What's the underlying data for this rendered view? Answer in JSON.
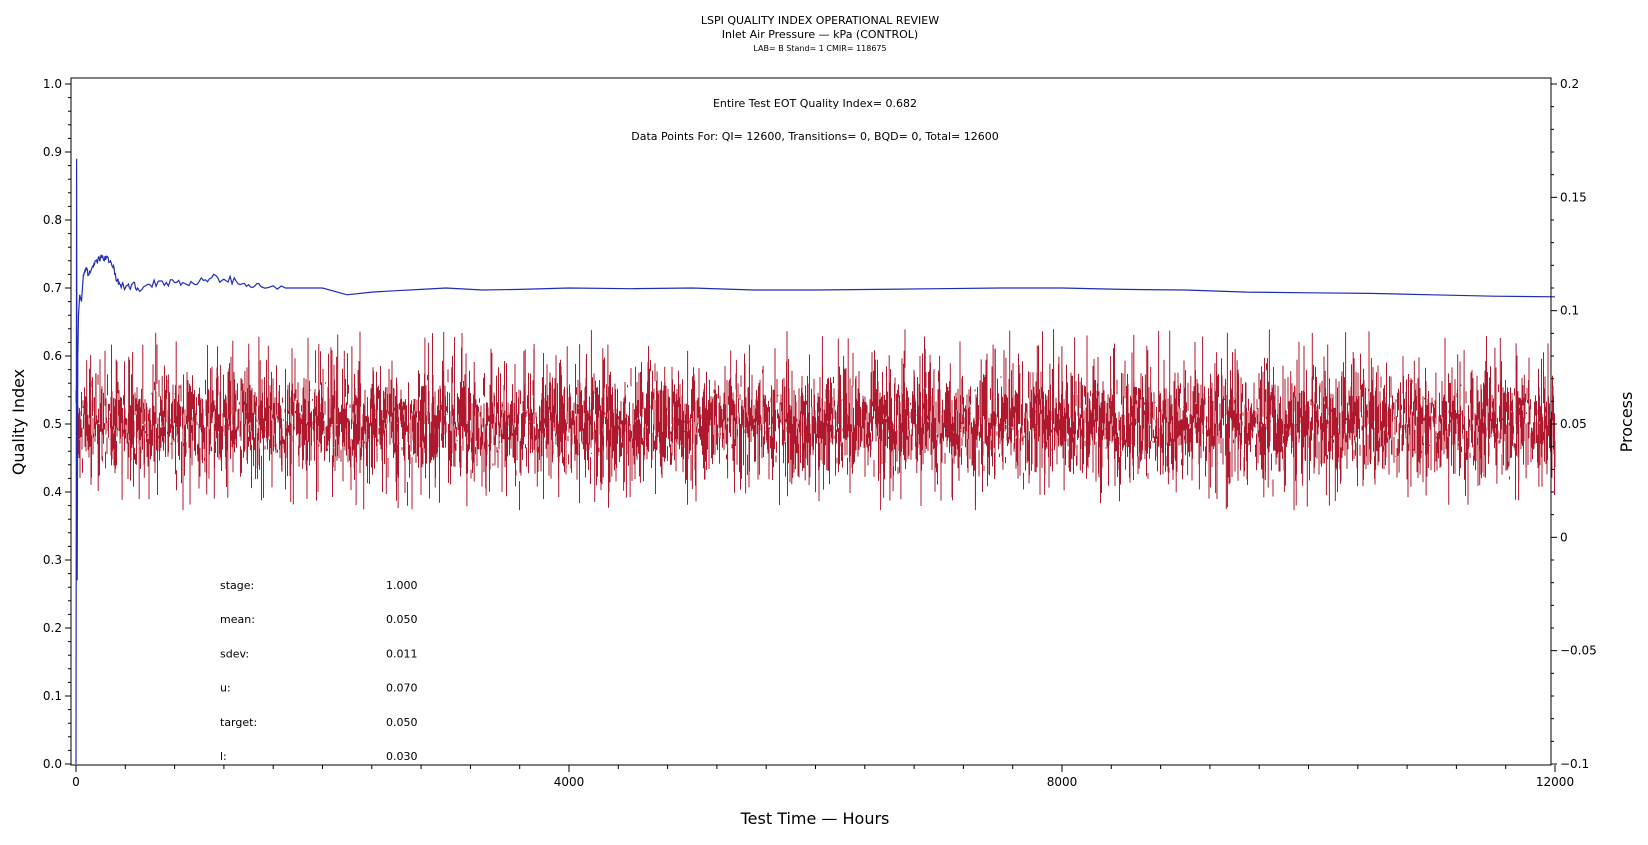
{
  "header": {
    "line1": "LSPI QUALITY INDEX OPERATIONAL REVIEW",
    "line2": "Inlet Air Pressure — kPa (CONTROL)",
    "line3": "LAB= B Stand= 1 CMIR= 118675"
  },
  "annotations": {
    "eot": "Entire Test EOT Quality Index=   0.682",
    "points": "Data Points For: QI= 12600, Transitions=     0, BQD=     0, Total= 12600"
  },
  "stats": [
    {
      "label": "stage:",
      "value": "1.000"
    },
    {
      "label": "mean:",
      "value": "0.050"
    },
    {
      "label": "sdev:",
      "value": "0.011"
    },
    {
      "label": "u:",
      "value": "0.070"
    },
    {
      "label": "target:",
      "value": "0.050"
    },
    {
      "label": "l:",
      "value": "0.030"
    }
  ],
  "chart_data": {
    "type": "line",
    "xlabel": "Test Time — Hours",
    "ylabel": "Quality Index",
    "y2label": "Process",
    "xlim": [
      0,
      12000
    ],
    "ylim": [
      0,
      1.0
    ],
    "y2lim": [
      -0.1,
      0.2
    ],
    "xticks": [
      {
        "value": 0,
        "label": "0"
      },
      {
        "value": 4000,
        "label": "4000"
      },
      {
        "value": 8000,
        "label": "8000"
      },
      {
        "value": 12000,
        "label": "12000"
      }
    ],
    "yticks": [
      {
        "value": 0.0,
        "label": "0.0"
      },
      {
        "value": 0.1,
        "label": "0.1"
      },
      {
        "value": 0.2,
        "label": "0.2"
      },
      {
        "value": 0.3,
        "label": "0.3"
      },
      {
        "value": 0.4,
        "label": "0.4"
      },
      {
        "value": 0.5,
        "label": "0.5"
      },
      {
        "value": 0.6,
        "label": "0.6"
      },
      {
        "value": 0.7,
        "label": "0.7"
      },
      {
        "value": 0.8,
        "label": "0.8"
      },
      {
        "value": 0.9,
        "label": "0.9"
      },
      {
        "value": 1.0,
        "label": "1.0"
      }
    ],
    "y2ticks": [
      {
        "value": -0.1,
        "label": "−0.1"
      },
      {
        "value": -0.05,
        "label": "−0.05"
      },
      {
        "value": 0,
        "label": "0"
      },
      {
        "value": 0.05,
        "label": "0.05"
      },
      {
        "value": 0.1,
        "label": "0.1"
      },
      {
        "value": 0.15,
        "label": "0.15"
      },
      {
        "value": 0.2,
        "label": "0.2"
      }
    ],
    "series": [
      {
        "axis": "left",
        "color": "#1f2db5",
        "x": [
          0,
          5,
          10,
          15,
          20,
          30,
          45,
          60,
          80,
          100,
          130,
          160,
          200,
          230,
          260,
          300,
          330,
          360,
          400,
          450,
          500,
          600,
          700,
          800,
          900,
          1000,
          1100,
          1200,
          1300,
          1400,
          1500,
          1700,
          2000,
          2200,
          2400,
          2600,
          2800,
          3000,
          3300,
          3600,
          4000,
          4500,
          5000,
          5500,
          6000,
          6500,
          7000,
          7500,
          8000,
          8500,
          9000,
          9500,
          10000,
          10500,
          11000,
          11500,
          12000
        ],
        "values": [
          0.0,
          0.89,
          0.27,
          0.6,
          0.66,
          0.69,
          0.68,
          0.72,
          0.73,
          0.72,
          0.73,
          0.74,
          0.745,
          0.74,
          0.745,
          0.73,
          0.71,
          0.705,
          0.7,
          0.705,
          0.7,
          0.705,
          0.71,
          0.708,
          0.705,
          0.71,
          0.715,
          0.713,
          0.71,
          0.705,
          0.702,
          0.7,
          0.7,
          0.69,
          0.694,
          0.696,
          0.698,
          0.7,
          0.697,
          0.698,
          0.7,
          0.699,
          0.7,
          0.697,
          0.697,
          0.698,
          0.699,
          0.7,
          0.7,
          0.698,
          0.697,
          0.694,
          0.693,
          0.692,
          0.69,
          0.688,
          0.687
        ]
      },
      {
        "axis": "right",
        "color": "#b0182d",
        "style": "dense-vertical-lines",
        "mean": 0.05,
        "sdev": 0.011,
        "ymin": 0.012,
        "ymax": 0.093
      }
    ]
  }
}
